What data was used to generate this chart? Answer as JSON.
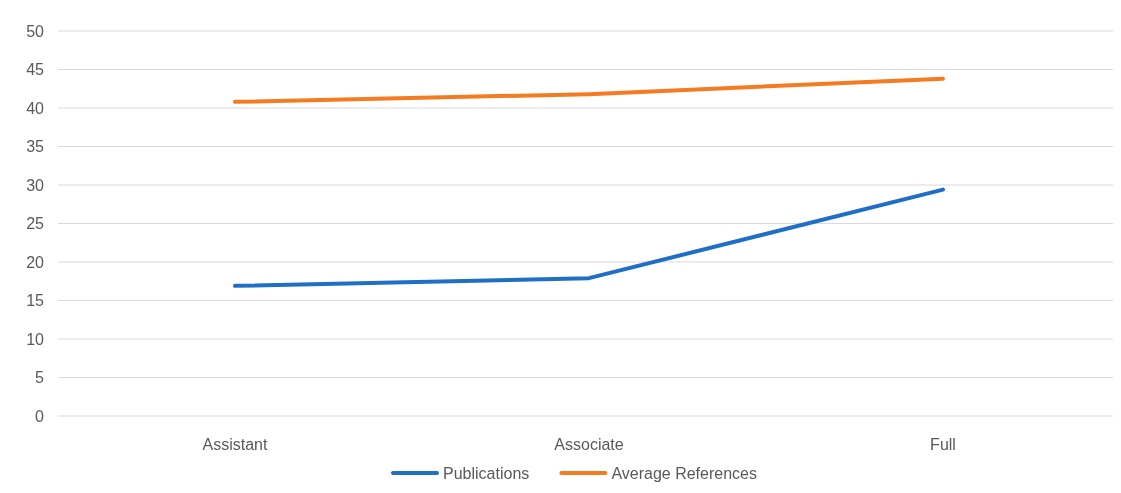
{
  "chart_data": {
    "type": "line",
    "categories": [
      "Assistant",
      "Associate",
      "Full"
    ],
    "series": [
      {
        "name": "Publications",
        "color": "#1f6fc5",
        "values": [
          16.9,
          17.9,
          29.4
        ]
      },
      {
        "name": "Average References",
        "color": "#f47b20",
        "values": [
          40.8,
          41.8,
          43.8
        ]
      }
    ],
    "ylim": [
      0,
      50
    ],
    "yticks": [
      0,
      5,
      10,
      15,
      20,
      25,
      30,
      35,
      40,
      45,
      50
    ],
    "grid": "y",
    "legend": "bottom",
    "marker": "none",
    "line_style": "solid"
  }
}
